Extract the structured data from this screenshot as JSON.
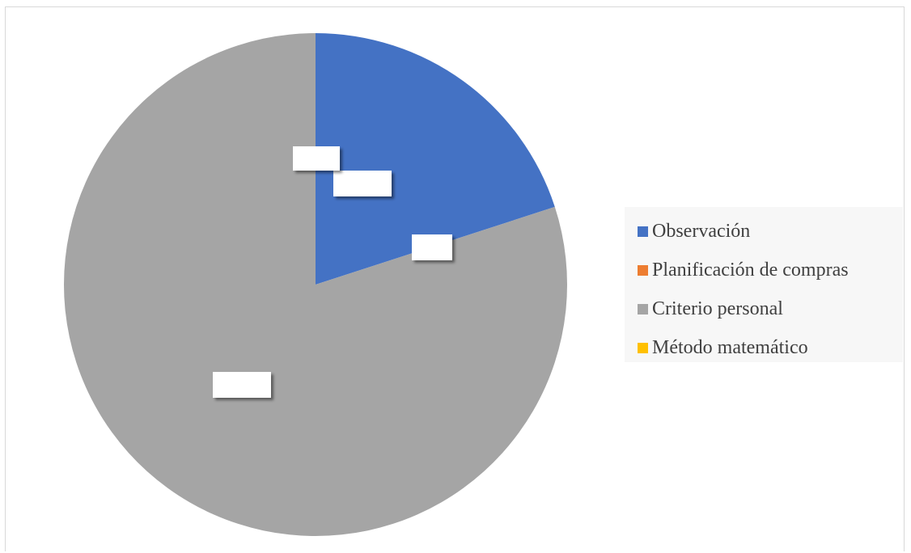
{
  "chart_data": {
    "type": "pie",
    "title": "",
    "start_angle_deg": 0,
    "direction": "clockwise",
    "slices": [
      {
        "label": "Observación",
        "value": 20,
        "color": "#4472c4",
        "data_label": ""
      },
      {
        "label": "Planificación de compras",
        "value": 0,
        "color": "#ed7d31",
        "data_label": ""
      },
      {
        "label": "Criterio personal",
        "value": 80,
        "color": "#a5a5a5",
        "data_label": ""
      },
      {
        "label": "Método matemático",
        "value": 0,
        "color": "#ffc000",
        "data_label": ""
      }
    ],
    "legend": {
      "position": "right"
    }
  }
}
